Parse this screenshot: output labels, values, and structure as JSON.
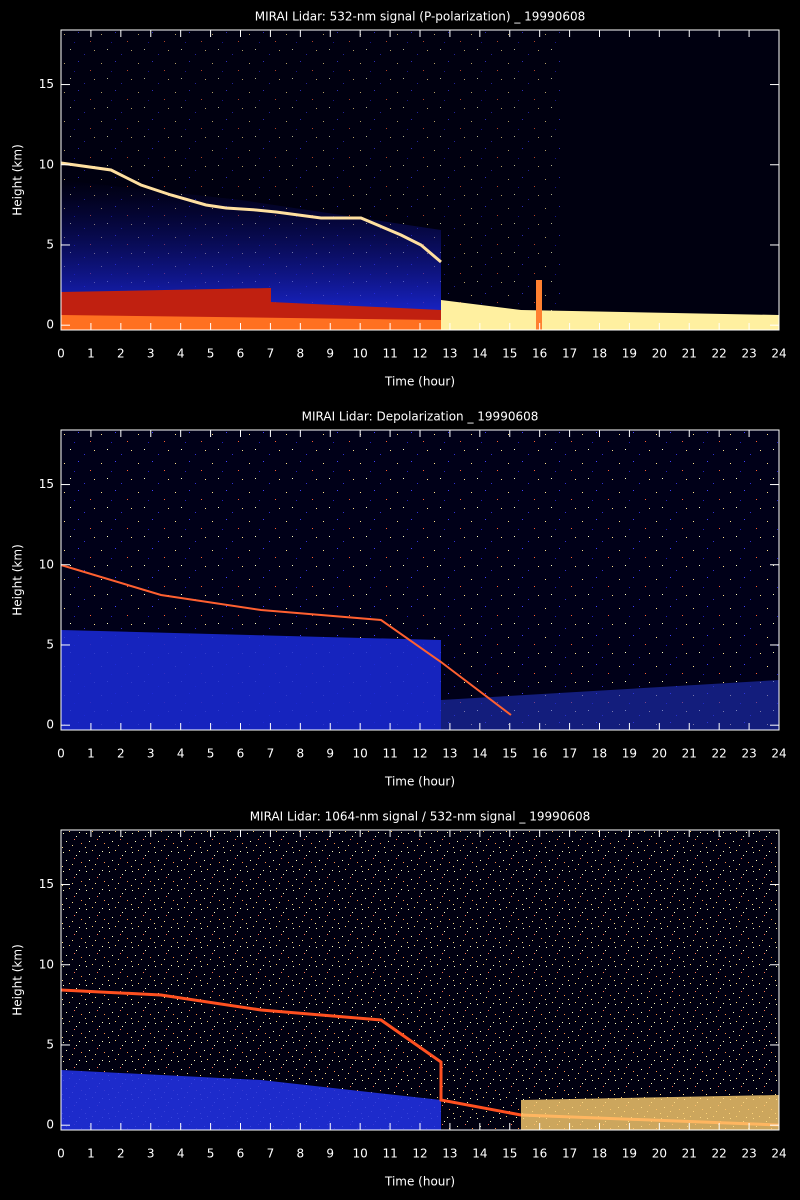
{
  "chart_data": [
    {
      "type": "heatmap",
      "title": "MIRAI Lidar: 532-nm signal (P-polarization) _ 19990608",
      "xlabel": "Time (hour)",
      "ylabel": "Height (km)",
      "xlim": [
        0,
        24
      ],
      "ylim": [
        -0.3,
        18.4
      ],
      "xticks": [
        0,
        1,
        2,
        3,
        4,
        5,
        6,
        7,
        8,
        9,
        10,
        11,
        12,
        13,
        14,
        15,
        16,
        17,
        18,
        19,
        20,
        21,
        22,
        23,
        24
      ],
      "yticks": [
        0,
        5,
        10,
        15
      ]
    },
    {
      "type": "heatmap",
      "title": "MIRAI Lidar: Depolarization _ 19990608",
      "xlabel": "Time (hour)",
      "ylabel": "Height (km)",
      "xlim": [
        0,
        24
      ],
      "ylim": [
        -0.3,
        18.4
      ],
      "xticks": [
        0,
        1,
        2,
        3,
        4,
        5,
        6,
        7,
        8,
        9,
        10,
        11,
        12,
        13,
        14,
        15,
        16,
        17,
        18,
        19,
        20,
        21,
        22,
        23,
        24
      ],
      "yticks": [
        0,
        5,
        10,
        15
      ]
    },
    {
      "type": "heatmap",
      "title": "MIRAI Lidar: 1064-nm signal / 532-nm signal _ 19990608",
      "xlabel": "Time (hour)",
      "ylabel": "Height (km)",
      "xlim": [
        0,
        24
      ],
      "ylim": [
        -0.3,
        18.4
      ],
      "xticks": [
        0,
        1,
        2,
        3,
        4,
        5,
        6,
        7,
        8,
        9,
        10,
        11,
        12,
        13,
        14,
        15,
        16,
        17,
        18,
        19,
        20,
        21,
        22,
        23,
        24
      ],
      "yticks": [
        0,
        5,
        10,
        15
      ]
    }
  ]
}
